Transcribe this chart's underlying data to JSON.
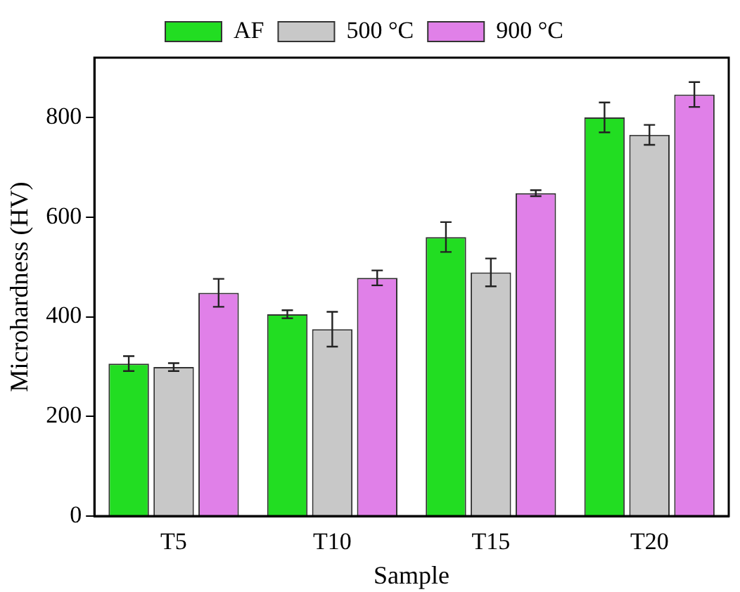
{
  "chart_data": {
    "type": "bar",
    "xlabel": "Sample",
    "ylabel": "Microhardness (HV)",
    "categories": [
      "T5",
      "T10",
      "T15",
      "T20"
    ],
    "series": [
      {
        "name": "AF",
        "color": "#22dd22",
        "values": [
          306,
          405,
          560,
          800
        ],
        "errors": [
          15,
          8,
          30,
          30
        ]
      },
      {
        "name": "500 °C",
        "color": "#c8c8c8",
        "values": [
          299,
          375,
          489,
          765
        ],
        "errors": [
          8,
          35,
          28,
          20
        ]
      },
      {
        "name": "900 °C",
        "color": "#e080e8",
        "values": [
          448,
          478,
          648,
          846
        ],
        "errors": [
          28,
          15,
          6,
          25
        ]
      }
    ],
    "ylim": [
      0,
      920
    ],
    "yticks": [
      0,
      200,
      400,
      600,
      800
    ],
    "grid": false,
    "legend": "top"
  }
}
